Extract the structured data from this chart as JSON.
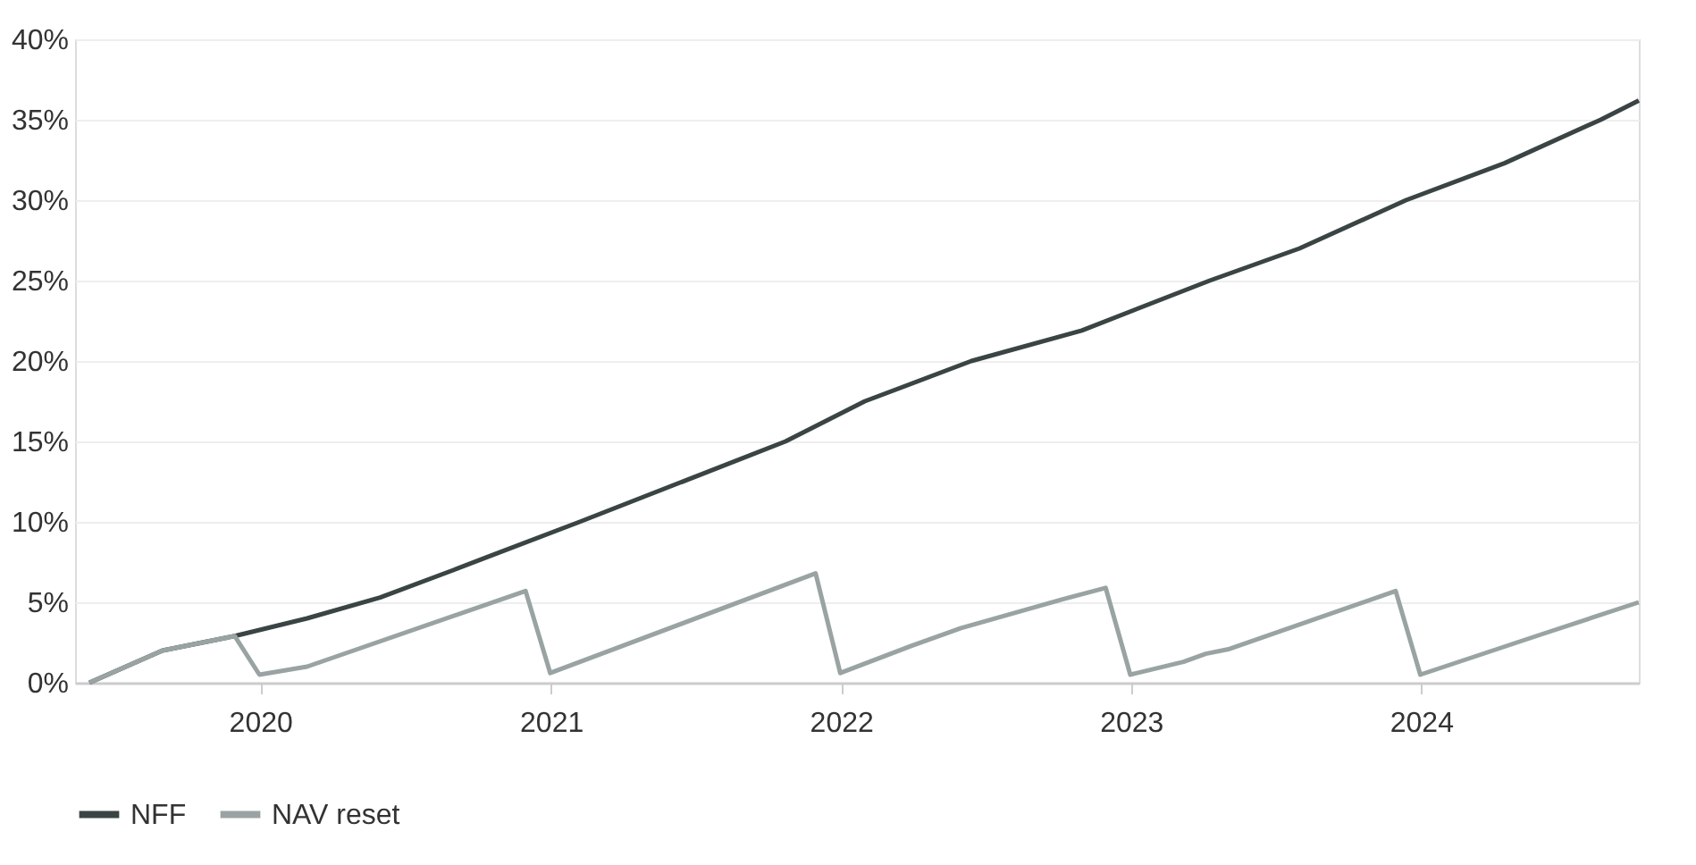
{
  "chart_data": {
    "type": "line",
    "xlim": [
      "2019-05-13",
      "2024-10-01"
    ],
    "xticks": [
      {
        "value": "2020-01-01",
        "label": "2020"
      },
      {
        "value": "2021-01-01",
        "label": "2021"
      },
      {
        "value": "2022-01-01",
        "label": "2022"
      },
      {
        "value": "2023-01-01",
        "label": "2023"
      },
      {
        "value": "2024-01-01",
        "label": "2024"
      }
    ],
    "ylim": [
      0,
      40
    ],
    "yticks": [
      {
        "value": 0,
        "label": "0%"
      },
      {
        "value": 5,
        "label": "5%"
      },
      {
        "value": 10,
        "label": "10%"
      },
      {
        "value": 15,
        "label": "15%"
      },
      {
        "value": 20,
        "label": "20%"
      },
      {
        "value": 25,
        "label": "25%"
      },
      {
        "value": 30,
        "label": "30%"
      },
      {
        "value": 35,
        "label": "35%"
      },
      {
        "value": 40,
        "label": "40%"
      }
    ],
    "grid": "y",
    "legend": "bottom left",
    "marker": "none",
    "line_style": "solid",
    "series": [
      {
        "name": "NFF",
        "color": "#3a4444",
        "x": [
          "2019-05-31",
          "2019-08-31",
          "2019-11-30",
          "2020-02-29",
          "2020-05-31",
          "2020-08-31",
          "2020-10-12",
          "2021-02-06",
          "2021-10-23",
          "2022-01-31",
          "2022-06-14",
          "2022-10-31",
          "2023-04-10",
          "2023-08-01",
          "2023-12-13",
          "2024-04-15",
          "2024-08-14",
          "2024-10-01"
        ],
        "values": [
          0,
          2.0,
          2.9,
          4.0,
          5.3,
          7.0,
          7.8,
          10.0,
          15.0,
          17.5,
          20.0,
          21.9,
          25.0,
          27.0,
          30.0,
          32.3,
          35.0,
          36.2
        ]
      },
      {
        "name": "NAV reset",
        "color": "#9aa3a3",
        "x": [
          "2019-05-31",
          "2019-08-31",
          "2019-11-30",
          "2019-12-31",
          "2020-02-29",
          "2020-11-30",
          "2020-12-31",
          "2021-11-30",
          "2021-12-31",
          "2022-03-31",
          "2022-06-01",
          "2022-10-08",
          "2022-11-30",
          "2022-12-31",
          "2023-03-08",
          "2023-04-05",
          "2023-05-05",
          "2023-11-30",
          "2023-12-31",
          "2024-05-31",
          "2024-10-01"
        ],
        "values": [
          0,
          2.0,
          2.9,
          0.5,
          1.0,
          5.7,
          0.6,
          6.8,
          0.6,
          2.3,
          3.4,
          5.2,
          5.9,
          0.5,
          1.3,
          1.8,
          2.1,
          5.7,
          0.5,
          3.0,
          5.0
        ]
      }
    ]
  }
}
